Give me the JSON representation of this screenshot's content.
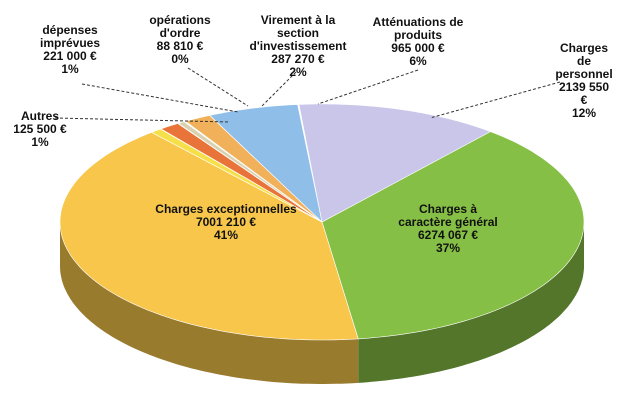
{
  "chart_data": {
    "type": "pie3d",
    "categories": [
      "Charges à\ncaractère général",
      "Charges exceptionnelles",
      "Autres",
      "dépenses\nimprévues",
      "opérations\nd'ordre",
      "Virement à la\nsection\nd'investissement",
      "Atténuations de\nproduits",
      "Charges de\npersonnel"
    ],
    "values": [
      6274067,
      7001210,
      125500,
      221000,
      88810,
      287270,
      965000,
      2139550
    ],
    "value_labels": [
      "6274 067 €",
      "7001 210 €",
      "125 500 €",
      "221 000 €",
      "88 810 €",
      "287 270 €",
      "965 000 €",
      "2139 550 €"
    ],
    "percents": [
      37,
      41,
      1,
      1,
      0,
      2,
      6,
      12
    ],
    "percent_labels": [
      "37%",
      "41%",
      "1%",
      "1%",
      "0%",
      "2%",
      "6%",
      "12%"
    ],
    "colors": [
      "#86bf45",
      "#f7c64a",
      "#f5e04a",
      "#e8743a",
      "#d9d2b0",
      "#f0b15a",
      "#8fbfe9",
      "#c9c6ea"
    ]
  }
}
